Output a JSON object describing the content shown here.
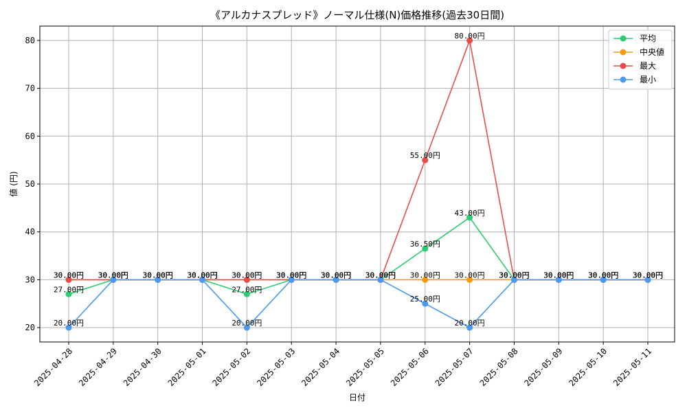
{
  "chart_data": {
    "type": "line",
    "title": "《アルカナスプレッド》ノーマル仕様(N)価格推移(過去30日間)",
    "xlabel": "日付",
    "ylabel": "値 (円)",
    "ylim": [
      17,
      83
    ],
    "yticks": [
      20,
      30,
      40,
      50,
      60,
      70,
      80
    ],
    "grid": true,
    "legend_position": "top-right",
    "value_suffix": "円",
    "categories": [
      "2025-04-28",
      "2025-04-29",
      "2025-04-30",
      "2025-05-01",
      "2025-05-02",
      "2025-05-03",
      "2025-05-04",
      "2025-05-05",
      "2025-05-06",
      "2025-05-07",
      "2025-05-08",
      "2025-05-09",
      "2025-05-10",
      "2025-05-11"
    ],
    "series": [
      {
        "name": "平均",
        "color": "#2ecc71",
        "values": [
          27,
          30,
          30,
          30,
          27,
          30,
          30,
          30,
          36.5,
          43,
          30,
          30,
          30,
          30
        ]
      },
      {
        "name": "中央値",
        "color": "#f39c12",
        "values": [
          30,
          30,
          30,
          30,
          30,
          30,
          30,
          30,
          30,
          30,
          30,
          30,
          30,
          30
        ]
      },
      {
        "name": "最大",
        "color": "#e74c4c",
        "values": [
          30,
          30,
          30,
          30,
          30,
          30,
          30,
          30,
          55,
          80,
          30,
          30,
          30,
          30
        ]
      },
      {
        "name": "最小",
        "color": "#4a9af0",
        "values": [
          20,
          30,
          30,
          30,
          20,
          30,
          30,
          30,
          25,
          20,
          30,
          30,
          30,
          30
        ]
      }
    ]
  }
}
